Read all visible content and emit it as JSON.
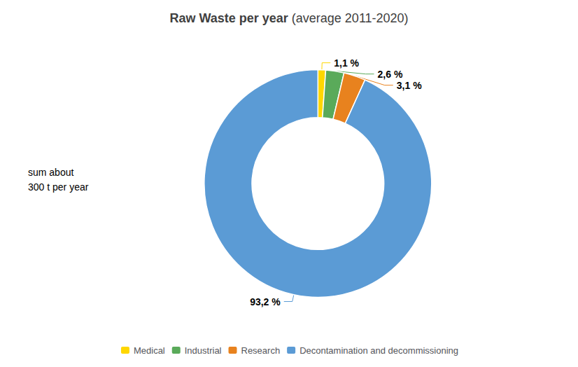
{
  "chart_data": {
    "type": "pie",
    "title": "Raw Waste per year",
    "subtitle": "(average 2011-2020)",
    "categories": [
      "Medical",
      "Industrial",
      "Research",
      "Decontamination and decommissioning"
    ],
    "values": [
      1.1,
      2.6,
      3.1,
      93.2
    ],
    "value_labels": [
      "1,1 %",
      "2,6 %",
      "3,1 %",
      "93,2 %"
    ],
    "colors": [
      "#FFD700",
      "#5AAA5A",
      "#E8821E",
      "#5B9BD5"
    ],
    "data_labels": true,
    "annotations": [
      "sum about\n300 t per year"
    ],
    "legend": "bottom"
  }
}
